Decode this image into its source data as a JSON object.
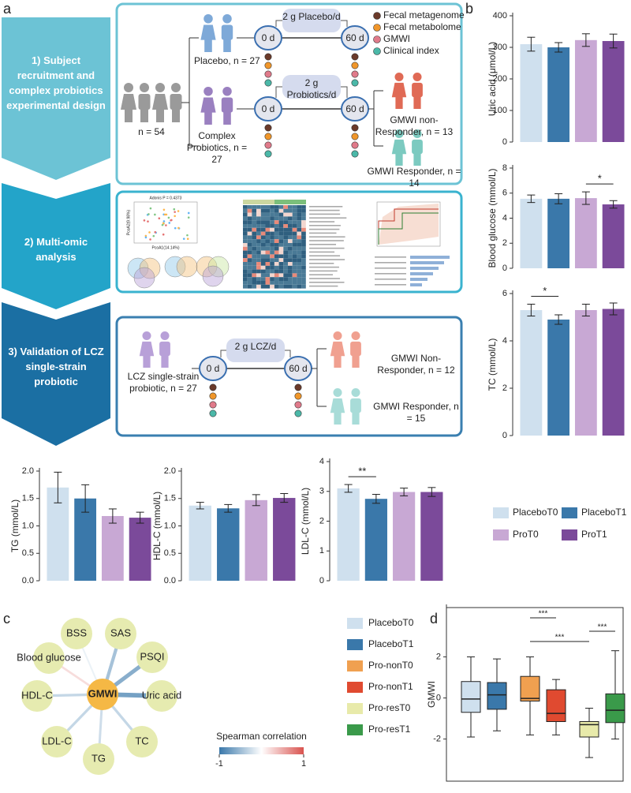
{
  "panel_labels": [
    "a",
    "b",
    "c",
    "d"
  ],
  "design": {
    "steps": [
      "1) Subject recruitment and complex probiotics experimental design",
      "2) Multi-omic analysis",
      "3) Validation of LCZ single-strain probiotic"
    ],
    "recruit": {
      "total": "n = 54",
      "placebo": "Placebo, n = 27",
      "probiotic": "Complex Probiotics, n = 27",
      "placebo_dose": "2 g Placebo/d",
      "probiotic_dose": "2 g Probiotics/d",
      "start": "0 d",
      "end": "60 d",
      "non_responder": "GMWI non-Responder, n = 13",
      "responder": "GMWI Responder, n = 14"
    },
    "samples": [
      {
        "name": "Fecal metagenome",
        "color": "#6b3a2a"
      },
      {
        "name": "Fecal metabolome",
        "color": "#f0962a"
      },
      {
        "name": "GMWI",
        "color": "#e07a8a"
      },
      {
        "name": "Clinical index",
        "color": "#4bb8a8"
      }
    ],
    "omics": {
      "adonis": "Adonis P = 0.4373",
      "pc1": "PcoA1(14.14%)",
      "pc2": "PcoA2(9.98%)"
    },
    "validation": {
      "subjects": "LCZ single-strain probiotic, n = 27",
      "dose": "2 g LCZ/d",
      "start": "0 d",
      "end": "60 d",
      "non_responder": "GMWI Non-Responder, n = 12",
      "responder": "GMWI Responder, n = 15"
    }
  },
  "bar_legend": [
    {
      "name": "PlaceboT0",
      "color": "#cfe0ee"
    },
    {
      "name": "PlaceboT1",
      "color": "#3a78aa"
    },
    {
      "name": "ProT0",
      "color": "#c8a8d4"
    },
    {
      "name": "ProT1",
      "color": "#7b4a9a"
    }
  ],
  "chart_data": [
    {
      "type": "bar",
      "ylabel": "Uric acid (μmol/L)",
      "values": [
        310,
        300,
        323,
        320
      ],
      "errors": [
        22,
        15,
        20,
        22
      ],
      "ylim": [
        0,
        400
      ],
      "yticks": [
        0,
        100,
        200,
        300,
        400
      ],
      "significance": []
    },
    {
      "type": "bar",
      "ylabel": "Blood glucose (mmol/L)",
      "values": [
        5.55,
        5.55,
        5.6,
        5.1
      ],
      "errors": [
        0.3,
        0.4,
        0.5,
        0.3
      ],
      "ylim": [
        0,
        8
      ],
      "yticks": [
        0,
        2,
        4,
        6,
        8
      ],
      "significance": [
        {
          "label": "*",
          "pair": [
            "ProT0",
            "ProT1"
          ]
        }
      ]
    },
    {
      "type": "bar",
      "ylabel": "TC (mmol/L)",
      "values": [
        5.3,
        4.9,
        5.3,
        5.35
      ],
      "errors": [
        0.25,
        0.2,
        0.25,
        0.25
      ],
      "ylim": [
        0,
        6
      ],
      "yticks": [
        0,
        2,
        4,
        6
      ],
      "significance": [
        {
          "label": "*",
          "pair": [
            "PlaceboT0",
            "PlaceboT1"
          ]
        }
      ]
    },
    {
      "type": "bar",
      "ylabel": "TG (mmol/L)",
      "values": [
        1.7,
        1.5,
        1.18,
        1.15
      ],
      "errors": [
        0.28,
        0.25,
        0.13,
        0.1
      ],
      "ylim": [
        0,
        2
      ],
      "yticks": [
        {
          "value": 0,
          "label": "0.0"
        },
        0.5,
        {
          "value": 1,
          "label": "1.0"
        },
        1.5,
        {
          "value": 2,
          "label": "2.0"
        }
      ],
      "significance": []
    },
    {
      "type": "bar",
      "ylabel": "HDL-C (mmol/L)",
      "values": [
        1.37,
        1.32,
        1.47,
        1.51
      ],
      "errors": [
        0.06,
        0.07,
        0.1,
        0.08
      ],
      "ylim": [
        0,
        2
      ],
      "yticks": [
        {
          "value": 0,
          "label": "0.0"
        },
        0.5,
        {
          "value": 1,
          "label": "1.0"
        },
        1.5,
        {
          "value": 2,
          "label": "2.0"
        }
      ],
      "significance": []
    },
    {
      "type": "bar",
      "ylabel": "LDL-C (mmol/L)",
      "values": [
        3.1,
        2.75,
        2.98,
        2.98
      ],
      "errors": [
        0.13,
        0.15,
        0.13,
        0.15
      ],
      "ylim": [
        0,
        4
      ],
      "yticks": [
        0,
        1,
        2,
        3,
        4
      ],
      "significance": [
        {
          "label": "**",
          "pair": [
            "PlaceboT0",
            "PlaceboT1"
          ]
        }
      ]
    },
    {
      "type": "network",
      "center": "GMWI",
      "center_color": "#f5b845",
      "node_color": "#e6ebb0",
      "nodes": [
        "BSS",
        "SAS",
        "PSQI",
        "Uric acid",
        "TC",
        "TG",
        "LDL-C",
        "HDL-C",
        "Blood glucose"
      ],
      "values": [
        -0.1,
        -0.45,
        -0.6,
        -0.7,
        -0.3,
        -0.25,
        -0.3,
        -0.3,
        0.2
      ],
      "colorbar": {
        "title": "Spearman correlation",
        "lim": [
          -1,
          1
        ],
        "ticks": [
          -1,
          1
        ],
        "colors": [
          "#3a78aa",
          "#ffffff",
          "#d9534f"
        ]
      }
    },
    {
      "type": "box",
      "ylabel": "GMWI",
      "categories": [
        "PlaceboT0",
        "PlaceboT1",
        "Pro-nonT0",
        "Pro-nonT1",
        "Pro-resT0",
        "Pro-resT1"
      ],
      "colors": [
        "#cfe0ee",
        "#3a78aa",
        "#f0a050",
        "#e04a30",
        "#e8eaaa",
        "#3a9a4a"
      ],
      "min": [
        -1.9,
        -1.6,
        -1.8,
        -1.8,
        -2.9,
        -2.0
      ],
      "q1": [
        -0.7,
        -0.55,
        -0.15,
        -1.15,
        -1.9,
        -1.2
      ],
      "median": [
        -0.05,
        0.15,
        -0.02,
        -0.75,
        -1.3,
        -0.6
      ],
      "q3": [
        0.8,
        0.75,
        1.05,
        0.4,
        -1.15,
        0.2
      ],
      "max": [
        2.0,
        1.9,
        2.0,
        0.9,
        -0.5,
        2.3
      ],
      "ylim": [
        -4.05,
        4.4
      ],
      "yticks": [
        -2,
        0,
        2
      ],
      "significance": [
        {
          "label": "***",
          "pair": [
            "Pro-nonT0",
            "Pro-nonT1"
          ]
        },
        {
          "label": "***",
          "pair": [
            "Pro-resT0",
            "Pro-resT1"
          ]
        },
        {
          "label": "***",
          "pair": [
            "Pro-nonT0",
            "Pro-resT0"
          ]
        }
      ]
    }
  ]
}
